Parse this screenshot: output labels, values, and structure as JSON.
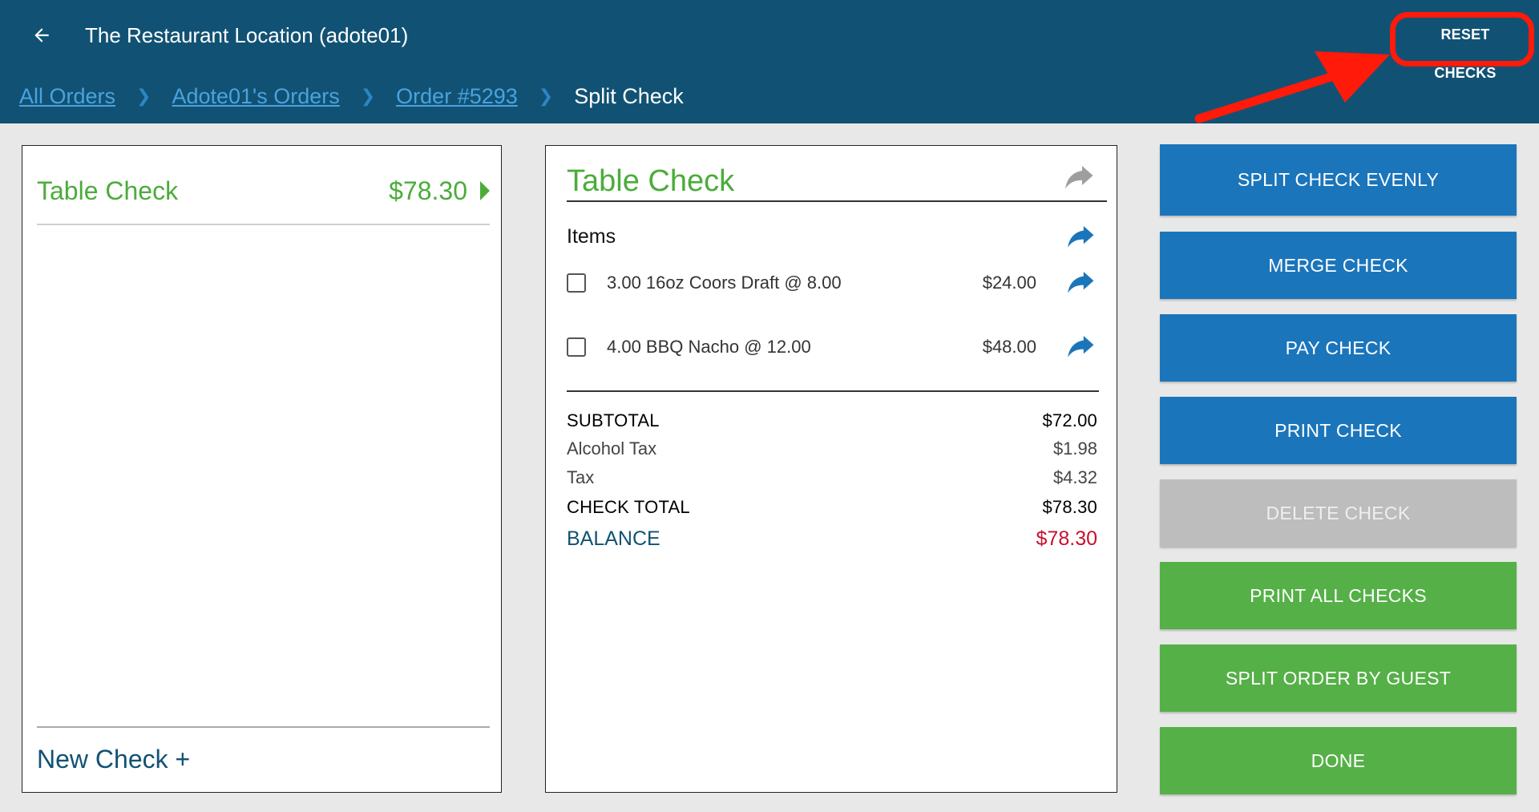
{
  "header": {
    "back_icon": "arrow-left-icon",
    "title": "The Restaurant Location (adote01)",
    "reset_label": "RESET CHECKS"
  },
  "breadcrumb": {
    "items": [
      "All Orders",
      "Adote01's Orders",
      "Order #5293"
    ],
    "current": "Split Check",
    "separator_icon": "chevron-right-icon"
  },
  "left_panel": {
    "check_name": "Table Check",
    "check_amount": "$78.30",
    "new_check_label": "New Check +"
  },
  "check_detail": {
    "title": "Table Check",
    "items_label": "Items",
    "items": [
      {
        "desc": "3.00 16oz Coors Draft @  8.00",
        "price": "$24.00"
      },
      {
        "desc": "4.00 BBQ Nacho @  12.00",
        "price": "$48.00"
      }
    ],
    "totals": {
      "subtotal_label": "SUBTOTAL",
      "subtotal": "$72.00",
      "alcohol_tax_label": "Alcohol Tax",
      "alcohol_tax": "$1.98",
      "tax_label": "Tax",
      "tax": "$4.32",
      "check_total_label": "CHECK TOTAL",
      "check_total": "$78.30",
      "balance_label": "BALANCE",
      "balance": "$78.30"
    }
  },
  "actions": {
    "split_evenly": "SPLIT CHECK EVENLY",
    "merge": "MERGE CHECK",
    "pay": "PAY CHECK",
    "print": "PRINT CHECK",
    "delete": "DELETE CHECK",
    "print_all": "PRINT ALL CHECKS",
    "split_by_guest": "SPLIT ORDER BY GUEST",
    "done": "DONE"
  },
  "colors": {
    "header_bg": "#115274",
    "primary_blue": "#1b75bb",
    "green": "#55b047",
    "disabled_gray": "#bdbdbd",
    "balance_red": "#c8102e",
    "annotation_red": "#ff1a0a"
  }
}
